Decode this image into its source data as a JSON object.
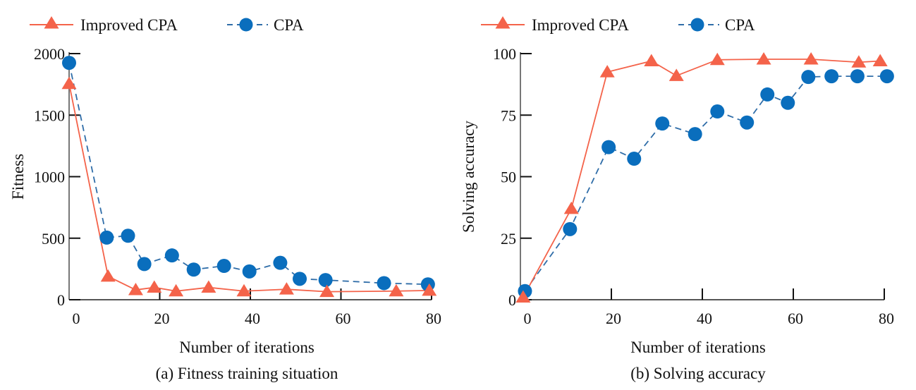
{
  "chart_data": [
    {
      "id": "fitness",
      "type": "line",
      "title": "",
      "caption": "(a) Fitness training situation",
      "xlabel": "Number of iterations",
      "ylabel": "Fitness",
      "xlim": [
        0,
        80
      ],
      "ylim": [
        0,
        2000
      ],
      "xticks": [
        0,
        20,
        40,
        60,
        80
      ],
      "xtick_labels": [
        "0",
        "20",
        "40",
        "60",
        "80"
      ],
      "yticks": [
        0,
        500,
        1000,
        1500,
        2000
      ],
      "ytick_labels": [
        "0",
        "500",
        "1000",
        "1500",
        "2000"
      ],
      "grid": false,
      "legend": "top-left",
      "series": [
        {
          "name": "Improved CPA",
          "color": "#F4634A",
          "marker": "triangle",
          "line_style": "solid",
          "x": [
            0,
            8.6,
            14.7,
            18.8,
            23.6,
            30.8,
            38.6,
            48,
            56.9,
            72.2,
            79.5
          ],
          "y": [
            1755,
            190,
            80,
            100,
            70,
            100,
            70,
            85,
            65,
            70,
            75
          ]
        },
        {
          "name": "CPA",
          "color": "#0A6EBD",
          "marker": "circle",
          "line_style": "dashed",
          "x": [
            0,
            8.3,
            13,
            16.6,
            22.7,
            27.5,
            34.2,
            39.8,
            46.6,
            50.9,
            56.6,
            69.5,
            79.2
          ],
          "y": [
            1925,
            505,
            520,
            290,
            360,
            245,
            275,
            230,
            300,
            170,
            160,
            135,
            125
          ]
        }
      ]
    },
    {
      "id": "accuracy",
      "type": "line",
      "title": "",
      "caption": "(b) Solving accuracy",
      "xlabel": "Number of iterations",
      "ylabel": "Solving accuracy",
      "xlim": [
        0,
        80
      ],
      "ylim": [
        0,
        100
      ],
      "xticks": [
        0,
        20,
        40,
        60,
        80
      ],
      "xtick_labels": [
        "0",
        "20",
        "40",
        "60",
        "80"
      ],
      "yticks": [
        0,
        25,
        50,
        75,
        100
      ],
      "ytick_labels": [
        "0",
        "25",
        "50",
        "75",
        "100"
      ],
      "grid": false,
      "legend": "top-left",
      "series": [
        {
          "name": "Improved CPA",
          "color": "#F4634A",
          "marker": "triangle",
          "line_style": "solid",
          "x": [
            0.6,
            11.2,
            19.1,
            28.8,
            34.3,
            43.3,
            53.5,
            63.9,
            74.4,
            79.1
          ],
          "y": [
            1,
            37,
            92.5,
            97,
            91,
            97.5,
            97.7,
            97.7,
            96.5,
            97
          ]
        },
        {
          "name": "CPA",
          "color": "#0A6EBD",
          "marker": "circle",
          "line_style": "dashed",
          "x": [
            1,
            10.9,
            19.4,
            25,
            31.2,
            38.4,
            43.3,
            49.8,
            54.3,
            58.8,
            63.3,
            68.4,
            74.1,
            80.6
          ],
          "y": [
            3.5,
            28.7,
            62,
            57.3,
            71.6,
            67.3,
            76.5,
            72,
            83.4,
            80,
            90.5,
            90.8,
            90.8,
            90.8
          ]
        }
      ]
    }
  ]
}
